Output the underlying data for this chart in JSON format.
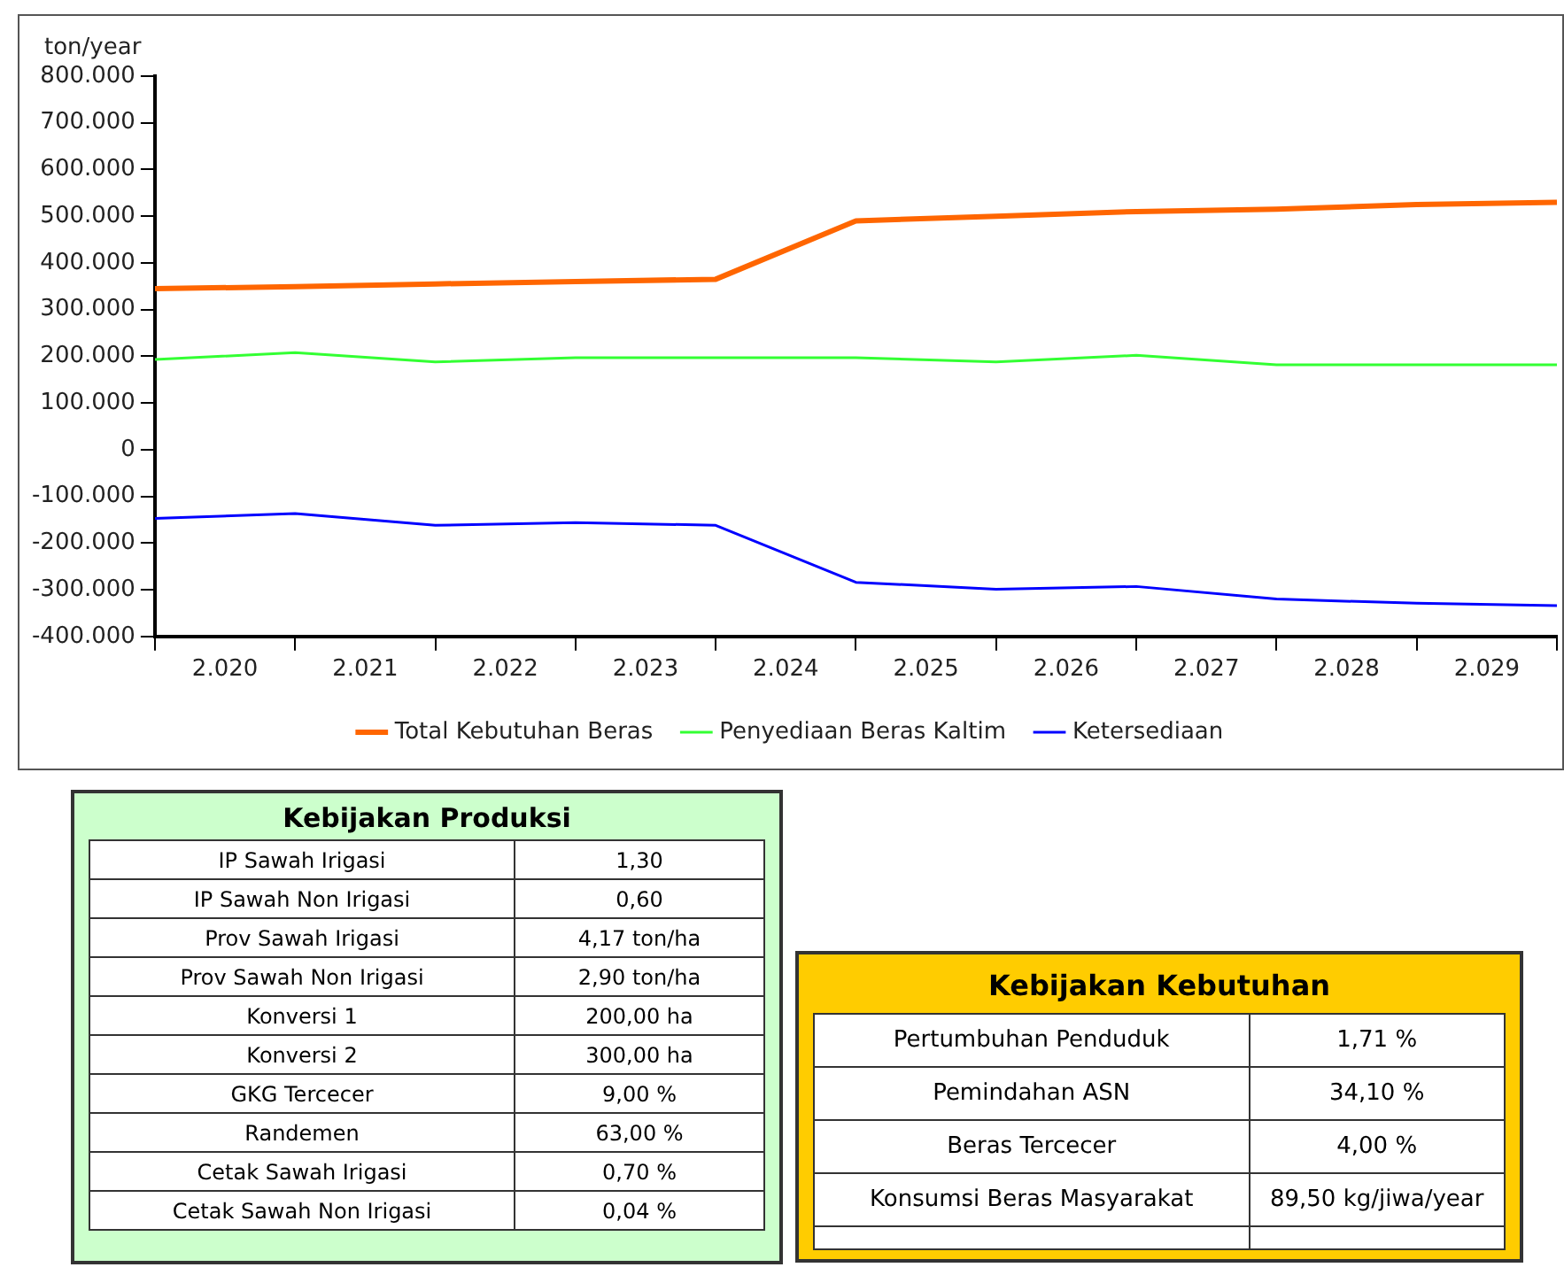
{
  "chart_data": [
    {
      "type": "line",
      "ylabel": "ton/year",
      "x": [
        2020,
        2021,
        2022,
        2023,
        2024,
        2025,
        2026,
        2027,
        2028,
        2029,
        2030
      ],
      "xlim": [
        2020,
        2030
      ],
      "xticks": [
        {
          "value": 2020,
          "label": null
        },
        {
          "value": 2020.5,
          "label": "2.020"
        },
        {
          "value": 2021,
          "label": null
        },
        {
          "value": 2021.5,
          "label": "2.021"
        },
        {
          "value": 2022,
          "label": null
        },
        {
          "value": 2022.5,
          "label": "2.022"
        },
        {
          "value": 2023,
          "label": null
        },
        {
          "value": 2023.5,
          "label": "2.023"
        },
        {
          "value": 2024,
          "label": null
        },
        {
          "value": 2024.5,
          "label": "2.024"
        },
        {
          "value": 2025,
          "label": null
        },
        {
          "value": 2025.5,
          "label": "2.025"
        },
        {
          "value": 2026,
          "label": null
        },
        {
          "value": 2026.5,
          "label": "2.026"
        },
        {
          "value": 2027,
          "label": null
        },
        {
          "value": 2027.5,
          "label": "2.027"
        },
        {
          "value": 2028,
          "label": null
        },
        {
          "value": 2028.5,
          "label": "2.028"
        },
        {
          "value": 2029,
          "label": null
        },
        {
          "value": 2029.5,
          "label": "2.029"
        },
        {
          "value": 2030,
          "label": null
        }
      ],
      "ylim": [
        -400000,
        800000
      ],
      "yticks": [
        {
          "value": -400000,
          "label": "-400.000"
        },
        {
          "value": -300000,
          "label": "-300.000"
        },
        {
          "value": -200000,
          "label": "-200.000"
        },
        {
          "value": -100000,
          "label": "-100.000"
        },
        0,
        {
          "value": 100000,
          "label": "100.000"
        },
        {
          "value": 200000,
          "label": "200.000"
        },
        {
          "value": 300000,
          "label": "300.000"
        },
        {
          "value": 400000,
          "label": "400.000"
        },
        {
          "value": 500000,
          "label": "500.000"
        },
        {
          "value": 600000,
          "label": "600.000"
        },
        {
          "value": 700000,
          "label": "700.000"
        },
        {
          "value": 800000,
          "label": "800.000"
        }
      ],
      "grid": false,
      "legend": "bottom",
      "marker": "none",
      "series": [
        {
          "name": "Total Kebutuhan Beras",
          "color": "#ff6600",
          "values": [
            345000,
            349000,
            355000,
            360000,
            365000,
            490000,
            500000,
            510000,
            515000,
            525000,
            530000
          ]
        },
        {
          "name": "Penyediaan Beras Kaltim",
          "color": "#33ff33",
          "values": [
            193000,
            208000,
            188000,
            197000,
            197000,
            197000,
            188000,
            202000,
            182000,
            182000,
            182000
          ]
        },
        {
          "name": "Ketersediaan",
          "color": "#0000ff",
          "values": [
            -147000,
            -137000,
            -162000,
            -156000,
            -162000,
            -284000,
            -299000,
            -293000,
            -320000,
            -329000,
            -334000
          ]
        }
      ]
    },
    {
      "type": "other",
      "title": "Kebijakan Produksi",
      "color": "#ccffcc",
      "annotations": [
        "IP Sawah Irigasi",
        "1,30",
        "IP Sawah Non Irigasi",
        "0,60",
        "Prov Sawah Irigasi",
        "4,17 ton/ha",
        "Prov Sawah Non Irigasi",
        "2,90 ton/ha",
        "Konversi 1",
        "200,00 ha",
        "Konversi 2",
        "300,00 ha",
        "GKG Tercecer",
        "9,00 %",
        "Randemen",
        "63,00 %",
        "Cetak Sawah Irigasi",
        "0,70 %",
        "Cetak Sawah Non Irigasi",
        "0,04 %"
      ]
    },
    {
      "type": "other",
      "title": "Kebijakan Kebutuhan",
      "color": "#ffcc00",
      "annotations": [
        "Pertumbuhan Penduduk",
        "1,71 %",
        "Pemindahan ASN",
        "34,10 %",
        "Beras Tercecer",
        "4,00 %",
        "Konsumsi Beras Masyarakat",
        "89,50 kg/jiwa/year"
      ]
    }
  ]
}
